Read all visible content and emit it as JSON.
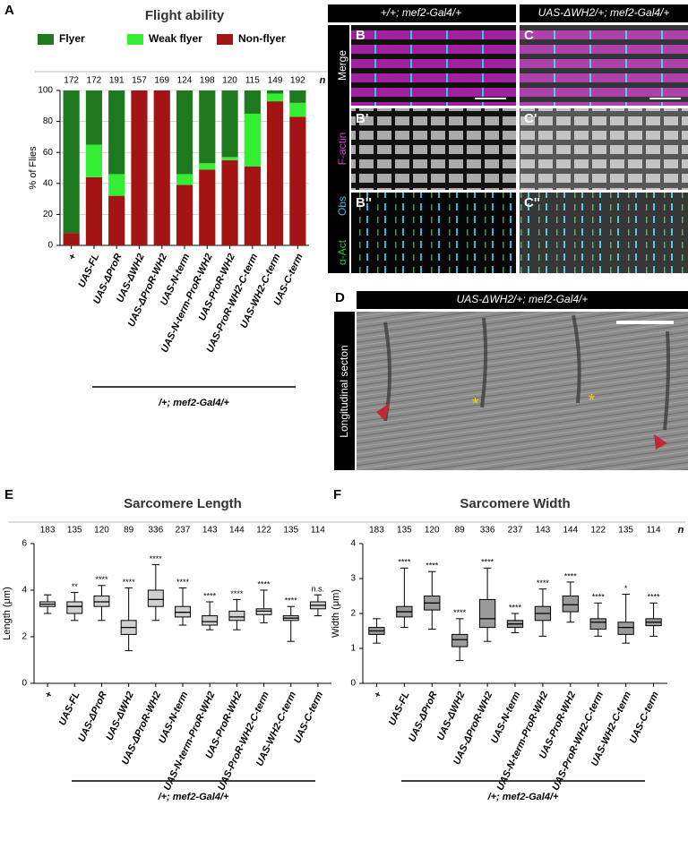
{
  "chart_data": [
    {
      "type": "bar",
      "stacked": true,
      "panel": "A",
      "title": "Flight ability",
      "ylabel": "% of Flies",
      "n_label": "n",
      "group_label": "/+; mef2-Gal4/+",
      "grid": true,
      "categories": [
        "+",
        "UAS-FL",
        "UAS-ΔProR",
        "UAS-ΔWH2",
        "UAS-ΔProR-WH2",
        "UAS-N-term",
        "UAS-N-term-ProR-WH2",
        "UAS-ProR-WH2",
        "UAS-ProR-WH2-C-term",
        "UAS-WH2-C-term",
        "UAS-C-term"
      ],
      "n": [
        172,
        172,
        191,
        157,
        169,
        124,
        198,
        120,
        115,
        149,
        192
      ],
      "series": [
        {
          "name": "Flyer",
          "color": "#1f7a1f",
          "values": [
            92,
            35,
            54,
            0,
            0,
            54,
            47,
            43,
            15,
            2,
            8
          ]
        },
        {
          "name": "Weak flyer",
          "color": "#33ee33",
          "values": [
            0,
            21,
            14,
            0,
            0,
            7,
            4,
            2,
            34,
            5,
            9
          ]
        },
        {
          "name": "Non-flyer",
          "color": "#a31515",
          "values": [
            8,
            44,
            32,
            100,
            100,
            39,
            49,
            55,
            51,
            93,
            83
          ]
        }
      ],
      "ylim": [
        0,
        100
      ],
      "yticks": [
        0,
        20,
        40,
        60,
        80,
        100
      ]
    },
    {
      "type": "box",
      "panel": "E",
      "title": "Sarcomere Length",
      "ylabel": "Length (μm)",
      "group_label": "/+; mef2-Gal4/+",
      "color": "#d0d0d0",
      "categories": [
        "+",
        "UAS-FL",
        "UAS-ΔProR",
        "UAS-ΔWH2",
        "UAS-ΔProR-WH2",
        "UAS-N-term",
        "UAS-N-term-ProR-WH2",
        "UAS-ProR-WH2",
        "UAS-ProR-WH2-C-term",
        "UAS-WH2-C-term",
        "UAS-C-term"
      ],
      "n": [
        183,
        135,
        120,
        89,
        336,
        237,
        143,
        144,
        122,
        135,
        114
      ],
      "boxes": [
        {
          "min": 3.0,
          "q1": 3.3,
          "median": 3.4,
          "q3": 3.5,
          "max": 3.8
        },
        {
          "min": 2.7,
          "q1": 3.0,
          "median": 3.3,
          "q3": 3.5,
          "max": 3.9
        },
        {
          "min": 2.7,
          "q1": 3.3,
          "median": 3.5,
          "q3": 3.75,
          "max": 4.2
        },
        {
          "min": 1.4,
          "q1": 2.1,
          "median": 2.4,
          "q3": 2.7,
          "max": 4.1
        },
        {
          "min": 2.7,
          "q1": 3.3,
          "median": 3.6,
          "q3": 4.0,
          "max": 5.1
        },
        {
          "min": 2.5,
          "q1": 2.85,
          "median": 3.05,
          "q3": 3.3,
          "max": 4.1
        },
        {
          "min": 2.3,
          "q1": 2.5,
          "median": 2.65,
          "q3": 2.9,
          "max": 3.5
        },
        {
          "min": 2.3,
          "q1": 2.7,
          "median": 2.85,
          "q3": 3.1,
          "max": 3.6
        },
        {
          "min": 2.6,
          "q1": 2.95,
          "median": 3.1,
          "q3": 3.2,
          "max": 4.0
        },
        {
          "min": 1.8,
          "q1": 2.7,
          "median": 2.8,
          "q3": 2.9,
          "max": 3.3
        },
        {
          "min": 2.9,
          "q1": 3.2,
          "median": 3.35,
          "q3": 3.5,
          "max": 3.8
        }
      ],
      "significance": [
        null,
        "**",
        "****",
        "****",
        "****",
        "****",
        "****",
        "****",
        "****",
        "****",
        "n.s."
      ],
      "ylim": [
        0,
        6
      ],
      "yticks": [
        0,
        2,
        4,
        6
      ]
    },
    {
      "type": "box",
      "panel": "F",
      "title": "Sarcomere Width",
      "ylabel": "Width (μm)",
      "n_label": "n",
      "group_label": "/+; mef2-Gal4/+",
      "color": "#9a9a9a",
      "categories": [
        "+",
        "UAS-FL",
        "UAS-ΔProR",
        "UAS-ΔWH2",
        "UAS-ΔProR-WH2",
        "UAS-N-term",
        "UAS-N-term-ProR-WH2",
        "UAS-ProR-WH2",
        "UAS-ProR-WH2-C-term",
        "UAS-WH2-C-term",
        "UAS-C-term"
      ],
      "n": [
        183,
        135,
        120,
        89,
        336,
        237,
        143,
        144,
        122,
        135,
        114
      ],
      "boxes": [
        {
          "min": 1.15,
          "q1": 1.4,
          "median": 1.5,
          "q3": 1.6,
          "max": 1.85
        },
        {
          "min": 1.6,
          "q1": 1.9,
          "median": 2.05,
          "q3": 2.2,
          "max": 3.3
        },
        {
          "min": 1.55,
          "q1": 2.1,
          "median": 2.3,
          "q3": 2.5,
          "max": 3.2
        },
        {
          "min": 0.65,
          "q1": 1.05,
          "median": 1.25,
          "q3": 1.4,
          "max": 1.85
        },
        {
          "min": 1.2,
          "q1": 1.6,
          "median": 1.85,
          "q3": 2.4,
          "max": 3.3
        },
        {
          "min": 1.45,
          "q1": 1.6,
          "median": 1.7,
          "q3": 1.8,
          "max": 2.0
        },
        {
          "min": 1.35,
          "q1": 1.8,
          "median": 2.0,
          "q3": 2.2,
          "max": 2.7
        },
        {
          "min": 1.75,
          "q1": 2.05,
          "median": 2.25,
          "q3": 2.5,
          "max": 2.9
        },
        {
          "min": 1.35,
          "q1": 1.55,
          "median": 1.75,
          "q3": 1.85,
          "max": 2.3
        },
        {
          "min": 1.15,
          "q1": 1.4,
          "median": 1.6,
          "q3": 1.75,
          "max": 2.55
        },
        {
          "min": 1.35,
          "q1": 1.65,
          "median": 1.75,
          "q3": 1.85,
          "max": 2.3
        }
      ],
      "significance": [
        null,
        "****",
        "****",
        "****",
        "****",
        "****",
        "****",
        "****",
        "****",
        "*",
        "****"
      ],
      "ylim": [
        0,
        4
      ],
      "yticks": [
        0,
        1,
        2,
        3,
        4
      ]
    }
  ],
  "panels": {
    "b_header": "+/+; mef2-Gal4/+",
    "c_header": "UAS-ΔWH2/+; mef2-Gal4/+",
    "b1": "B",
    "c1": "C",
    "b2": "B'",
    "c2": "C'",
    "b3": "B''",
    "c3": "C''",
    "row1": "Merge",
    "row2": "F-actin",
    "row3a": "Obs",
    "row3b": "α-Act",
    "d": "D",
    "d_header": "UAS-ΔWH2/+; mef2-Gal4/+",
    "d_side": "Longitudinal secton"
  }
}
